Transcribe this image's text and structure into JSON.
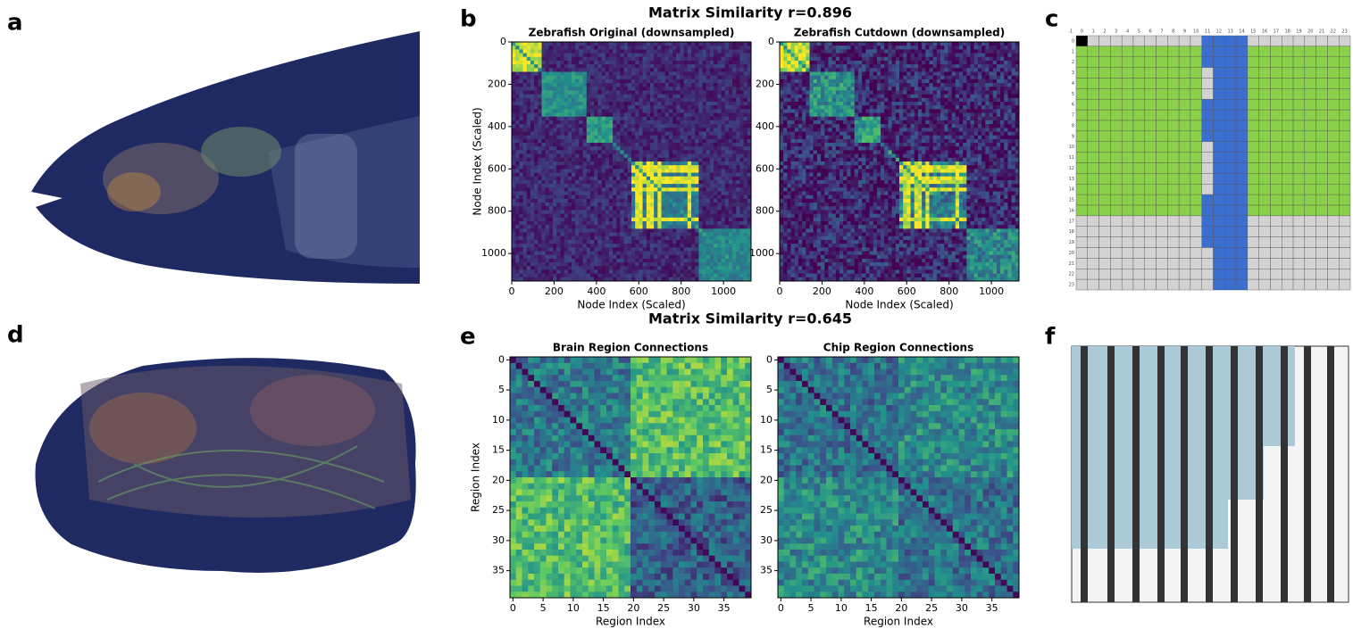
{
  "panel_labels": [
    "a",
    "b",
    "c",
    "d",
    "e",
    "f"
  ],
  "b": {
    "title": "Matrix Similarity r=0.896",
    "lim": [
      0,
      1130
    ],
    "ticks": [
      0,
      200,
      400,
      600,
      800,
      1000
    ],
    "plots": [
      {
        "subtitle": "Zebrafish Original (downsampled)",
        "xlabel": "Node Index (Scaled)",
        "ylabel": "Node Index (Scaled)"
      },
      {
        "subtitle": "Zebrafish Cutdown (downsampled)",
        "xlabel": "Node Index (Scaled)"
      }
    ]
  },
  "c": {
    "col_labels": [
      -1,
      0,
      1,
      2,
      3,
      4,
      5,
      6,
      7,
      8,
      9,
      10,
      11,
      12,
      13,
      14,
      15,
      16,
      17,
      18,
      19,
      20,
      21,
      22,
      23
    ],
    "row_labels": [
      0,
      1,
      2,
      3,
      4,
      5,
      6,
      7,
      8,
      9,
      10,
      11,
      12,
      13,
      14,
      15,
      16,
      17,
      18,
      19,
      20,
      21,
      22,
      23
    ]
  },
  "e": {
    "title": "Matrix Similarity r=0.645",
    "lim": [
      -0.5,
      39.5
    ],
    "ticks": [
      0,
      5,
      10,
      15,
      20,
      25,
      30,
      35
    ],
    "plots": [
      {
        "subtitle": "Brain Region Connections",
        "xlabel": "Region Index",
        "ylabel": "Region Index"
      },
      {
        "subtitle": "Chip Region Connections",
        "xlabel": "Region Index"
      }
    ]
  }
}
